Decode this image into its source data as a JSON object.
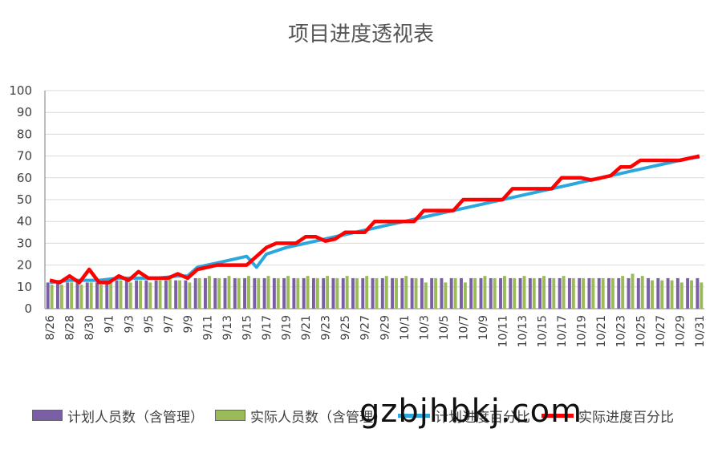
{
  "watermark": "gzbjhbkj.com",
  "colors": {
    "planned_staff": "#7b5fa6",
    "actual_staff": "#9bbb59",
    "planned_progress": "#2aa7dd",
    "actual_progress": "#ff0000",
    "grid": "#d9d9d9",
    "axis_text": "#404040"
  },
  "chart_data": {
    "type": "bar",
    "title": "项目进度透视表",
    "xlabel": "",
    "ylabel": "",
    "ylim": [
      0,
      100
    ],
    "yticks": [
      0,
      10,
      20,
      30,
      40,
      50,
      60,
      70,
      80,
      90,
      100
    ],
    "grid": true,
    "legend_position": "bottom",
    "categories": [
      "8/26",
      "8/27",
      "8/28",
      "8/29",
      "8/30",
      "8/31",
      "9/1",
      "9/2",
      "9/3",
      "9/4",
      "9/5",
      "9/6",
      "9/7",
      "9/8",
      "9/9",
      "9/10",
      "9/11",
      "9/12",
      "9/13",
      "9/14",
      "9/15",
      "9/16",
      "9/17",
      "9/18",
      "9/19",
      "9/20",
      "9/21",
      "9/22",
      "9/23",
      "9/24",
      "9/25",
      "9/26",
      "9/27",
      "9/28",
      "9/29",
      "9/30",
      "10/1",
      "10/2",
      "10/3",
      "10/4",
      "10/5",
      "10/6",
      "10/7",
      "10/8",
      "10/9",
      "10/10",
      "10/11",
      "10/12",
      "10/13",
      "10/14",
      "10/15",
      "10/16",
      "10/17",
      "10/18",
      "10/19",
      "10/20",
      "10/21",
      "10/22",
      "10/23",
      "10/24",
      "10/25",
      "10/26",
      "10/27",
      "10/28",
      "10/29",
      "10/30",
      "10/31"
    ],
    "tick_labels": [
      "8/26",
      "8/28",
      "8/30",
      "9/1",
      "9/3",
      "9/5",
      "9/7",
      "9/9",
      "9/11",
      "9/13",
      "9/15",
      "9/17",
      "9/19",
      "9/21",
      "9/23",
      "9/25",
      "9/27",
      "9/29",
      "10/1",
      "10/3",
      "10/5",
      "10/7",
      "10/9",
      "10/11",
      "10/13",
      "10/15",
      "10/17",
      "10/19",
      "10/21",
      "10/23",
      "10/25",
      "10/27",
      "10/29",
      "10/31"
    ],
    "series": [
      {
        "name": "计划人员数（含管理）",
        "kind": "bar",
        "values": [
          12,
          12,
          12,
          12,
          12,
          12,
          13,
          13,
          13,
          13,
          13,
          13,
          13,
          13,
          13,
          14,
          14,
          14,
          14,
          14,
          14,
          14,
          14,
          14,
          14,
          14,
          14,
          14,
          14,
          14,
          14,
          14,
          14,
          14,
          14,
          14,
          14,
          14,
          14,
          14,
          14,
          14,
          14,
          14,
          14,
          14,
          14,
          14,
          14,
          14,
          14,
          14,
          14,
          14,
          14,
          14,
          14,
          14,
          14,
          14,
          14,
          14,
          14,
          14,
          14,
          14,
          14
        ]
      },
      {
        "name": "实际人员数（含管理）",
        "kind": "bar",
        "values": [
          11,
          11,
          12,
          11,
          12,
          11,
          12,
          13,
          12,
          13,
          12,
          13,
          14,
          13,
          12,
          14,
          15,
          14,
          15,
          14,
          15,
          14,
          15,
          14,
          15,
          14,
          15,
          14,
          15,
          14,
          15,
          14,
          15,
          14,
          15,
          14,
          15,
          14,
          12,
          14,
          12,
          14,
          12,
          14,
          15,
          14,
          15,
          14,
          15,
          14,
          15,
          14,
          15,
          14,
          14,
          14,
          14,
          14,
          15,
          16,
          15,
          13,
          13,
          13,
          12,
          13,
          12
        ]
      },
      {
        "name": "计划进度百分比",
        "kind": "line",
        "values": [
          12,
          12.5,
          13,
          13,
          13,
          13,
          13.5,
          14,
          14,
          14,
          14,
          14,
          14.5,
          15,
          15,
          19,
          20,
          21,
          22,
          23,
          24,
          19,
          25,
          26.5,
          28,
          29,
          30,
          31,
          32,
          33,
          34,
          35,
          36,
          37,
          38,
          39,
          40,
          41,
          42,
          43,
          44,
          45,
          46,
          47,
          48,
          49,
          50,
          51,
          52,
          53,
          54,
          55,
          56,
          57,
          58,
          59,
          60,
          61,
          62,
          63,
          64,
          65,
          66,
          67,
          68,
          69,
          69.5
        ]
      },
      {
        "name": "实际进度百分比",
        "kind": "line",
        "values": [
          13,
          12,
          15,
          12,
          18,
          12,
          12,
          15,
          13,
          17,
          14,
          14,
          14,
          16,
          14,
          18,
          19,
          20,
          20,
          20,
          20,
          24,
          28,
          30,
          30,
          30,
          33,
          33,
          31,
          32,
          35,
          35,
          35,
          40,
          40,
          40,
          40,
          40,
          45,
          45,
          45,
          45,
          50,
          50,
          50,
          50,
          50,
          55,
          55,
          55,
          55,
          55,
          60,
          60,
          60,
          59,
          60,
          61,
          65,
          65,
          68,
          68,
          68,
          68,
          68,
          69,
          70
        ]
      }
    ]
  }
}
